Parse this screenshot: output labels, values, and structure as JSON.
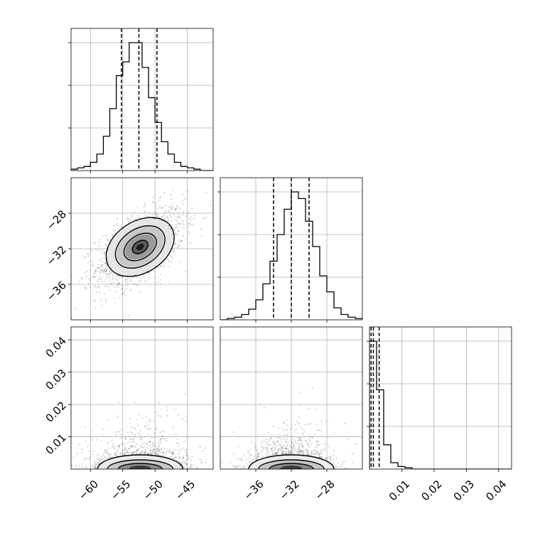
{
  "chart_data": {
    "type": "corner",
    "grid": true,
    "parameters": [
      {
        "range": [
          -63,
          -41
        ],
        "ticks": [
          -60,
          -55,
          -50,
          -45
        ],
        "tick_labels": [
          "−60",
          "−55",
          "−50",
          "−45"
        ],
        "quantiles": [
          -55.2,
          -52.5,
          -49.7
        ],
        "hist_x0": -63,
        "hist_dx": 1,
        "hist_counts": [
          1,
          2,
          3,
          6,
          12,
          25,
          45,
          69,
          79,
          93,
          93,
          75,
          53,
          35,
          21,
          12,
          6,
          3,
          2,
          1,
          0,
          0
        ]
      },
      {
        "range": [
          -40,
          -24
        ],
        "ticks": [
          -36,
          -32,
          -28
        ],
        "tick_labels": [
          "−36",
          "−32",
          "−28"
        ],
        "quantiles": [
          -34.0,
          -32.0,
          -30.0
        ],
        "hist_x0": -40,
        "hist_dx": 0.8,
        "hist_counts": [
          0,
          1,
          2,
          4,
          8,
          15,
          27,
          44,
          64,
          83,
          96,
          91,
          74,
          55,
          33,
          21,
          9,
          4,
          2,
          1
        ]
      },
      {
        "range": [
          0,
          0.044
        ],
        "ticks": [
          0.01,
          0.02,
          0.03,
          0.04
        ],
        "tick_labels": [
          "0.01",
          "0.02",
          "0.03",
          "0.04"
        ],
        "quantiles": [
          0.0005,
          0.0012,
          0.003
        ],
        "hist_x0": 0,
        "hist_dx": 0.0022,
        "hist_counts": [
          100,
          62,
          19,
          5,
          2,
          1,
          0,
          0,
          0,
          0,
          0,
          0,
          0,
          0,
          0,
          0,
          0,
          0,
          0,
          0
        ]
      }
    ],
    "panel_y_ticks": {
      "param2_labels": [
        "−28",
        "−32",
        "−36"
      ],
      "param3_labels": [
        "0.04",
        "0.03",
        "0.02",
        "0.01"
      ]
    },
    "joint_2d": [
      {
        "x_param": 0,
        "y_param": 1,
        "center": [
          -52.3,
          -31.8
        ],
        "std": [
          3.4,
          2.2
        ],
        "corr": 0.55,
        "contour_sigma": [
          0.5,
          1.0,
          1.5,
          2.0
        ]
      },
      {
        "x_param": 0,
        "y_param": 2,
        "center": [
          -52.3,
          0.0015
        ],
        "std": [
          3.4,
          0.003
        ]
      },
      {
        "x_param": 1,
        "y_param": 2,
        "center": [
          -32.0,
          0.0015
        ],
        "std": [
          2.2,
          0.003
        ]
      }
    ]
  }
}
